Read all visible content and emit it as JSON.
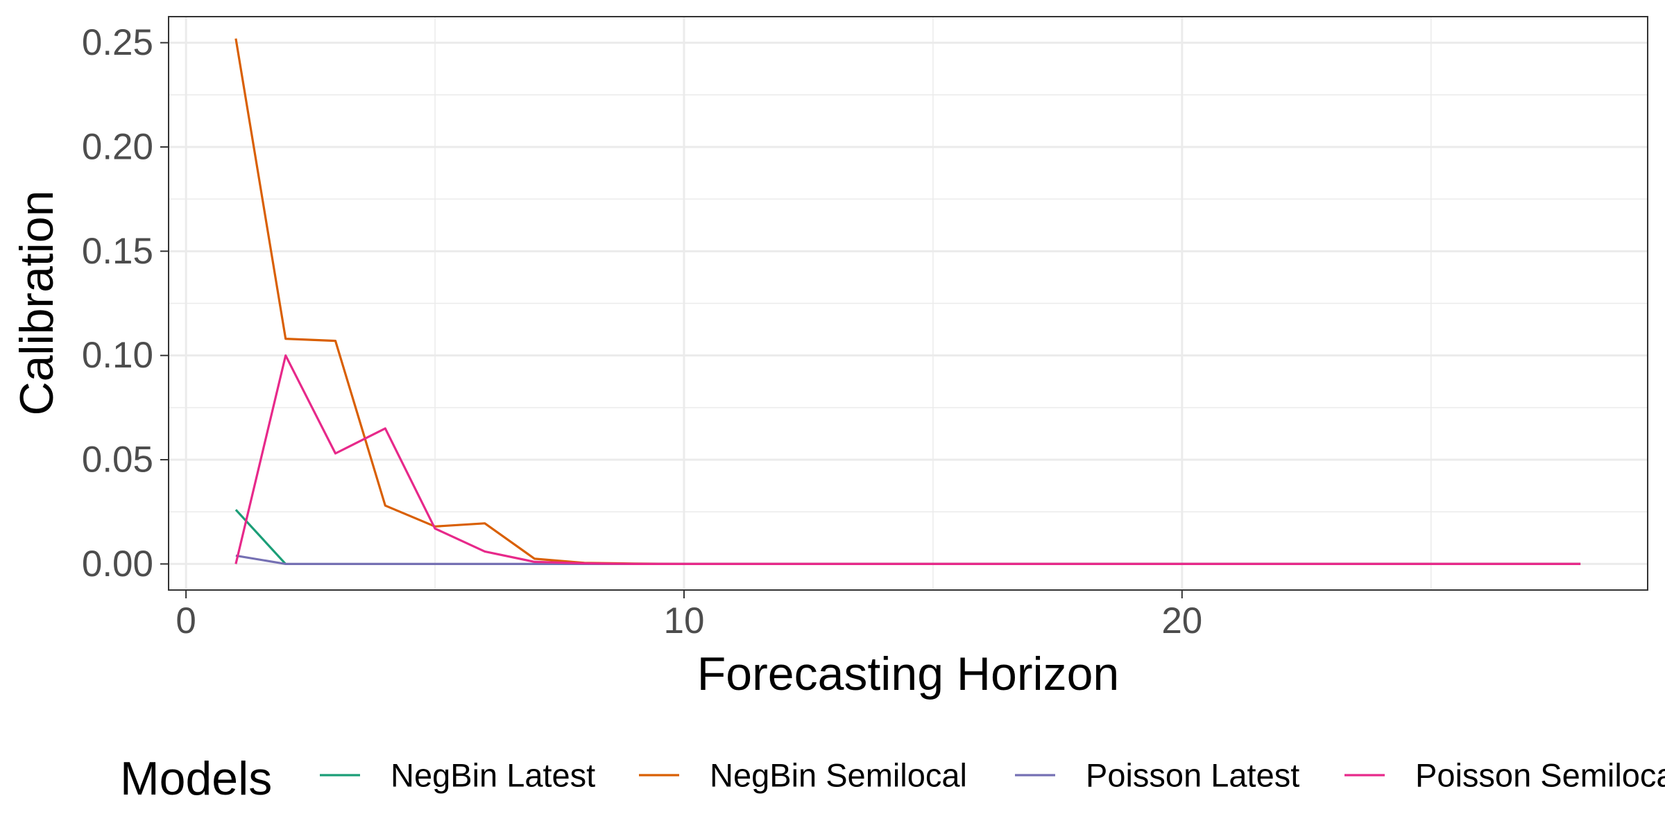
{
  "chart_data": {
    "type": "line",
    "title": "",
    "xlabel": "Forecasting Horizon",
    "ylabel": "Calibration",
    "xlim": [
      -0.35,
      29.35
    ],
    "ylim": [
      -0.0125,
      0.2625
    ],
    "x_ticks": [
      0,
      10,
      20
    ],
    "x_tick_labels": [
      "0",
      "10",
      "20"
    ],
    "y_ticks": [
      0,
      0.05,
      0.1,
      0.15,
      0.2,
      0.25
    ],
    "y_tick_labels": [
      "0.00",
      "0.05",
      "0.10",
      "0.15",
      "0.20",
      "0.25"
    ],
    "grid": true,
    "legend": {
      "position": "bottom",
      "title": "Models",
      "entries": [
        "NegBin Latest",
        "NegBin Semilocal",
        "Poisson Latest",
        "Poisson Semilocal"
      ]
    },
    "series": [
      {
        "name": "NegBin Latest",
        "color": "#1b9e77",
        "x": [
          1,
          2
        ],
        "y": [
          0.026,
          0
        ]
      },
      {
        "name": "NegBin Semilocal",
        "color": "#d95f02",
        "x": [
          1,
          2,
          3,
          4,
          5,
          6,
          7,
          8,
          9,
          10,
          11,
          12,
          13,
          14,
          15,
          16,
          17,
          18,
          19,
          20,
          21,
          22,
          23,
          24,
          25,
          26,
          27,
          28
        ],
        "y": [
          0.252,
          0.108,
          0.107,
          0.028,
          0.018,
          0.0195,
          0.0025,
          0.0005,
          0.0002,
          0,
          0,
          0,
          0,
          0,
          0,
          0,
          0,
          0,
          0,
          0,
          0,
          0,
          0,
          0,
          0,
          0,
          0,
          0
        ]
      },
      {
        "name": "Poisson Latest",
        "color": "#7570b3",
        "x": [
          1,
          2,
          3,
          4,
          5,
          6,
          7,
          8,
          9,
          10,
          11,
          12,
          13,
          14,
          15,
          16,
          17,
          18,
          19,
          20,
          21,
          22,
          23,
          24,
          25,
          26,
          27,
          28
        ],
        "y": [
          0.004,
          0,
          0,
          0,
          0,
          0,
          0,
          0,
          0,
          0,
          0,
          0,
          0,
          0,
          0,
          0,
          0,
          0,
          0,
          0,
          0,
          0,
          0,
          0,
          0,
          0,
          0,
          0
        ]
      },
      {
        "name": "Poisson Semilocal",
        "color": "#e7298a",
        "x": [
          1,
          2,
          3,
          4,
          5,
          6,
          7,
          8,
          9,
          10,
          11,
          12,
          13,
          14,
          15,
          16,
          17,
          18,
          19,
          20,
          21,
          22,
          23,
          24,
          25,
          26,
          27,
          28
        ],
        "y": [
          0,
          0.1,
          0.053,
          0.065,
          0.017,
          0.006,
          0.001,
          0.0003,
          0,
          0,
          0,
          0,
          0,
          0,
          0,
          0,
          0,
          0,
          0,
          0,
          0,
          0,
          0,
          0,
          0,
          0,
          0,
          0
        ]
      }
    ]
  }
}
